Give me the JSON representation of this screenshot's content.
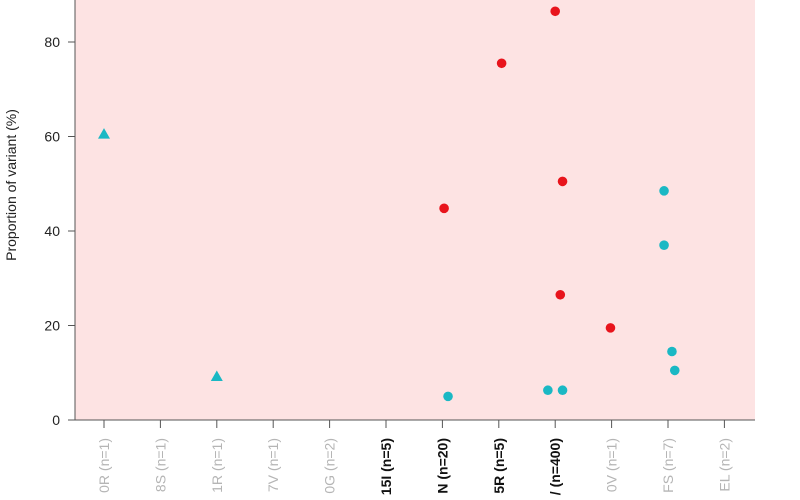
{
  "chart_data": {
    "type": "scatter",
    "ylabel": "Proportion of variant (%)",
    "ylim": [
      0,
      90
    ],
    "yticks": [
      0,
      20,
      40,
      60,
      80
    ],
    "categories": [
      {
        "label": "0R (n=1)",
        "color": "#b5b5b5",
        "bold": false
      },
      {
        "label": "8S (n=1)",
        "color": "#b5b5b5",
        "bold": false
      },
      {
        "label": "1R (n=1)",
        "color": "#b5b5b5",
        "bold": false
      },
      {
        "label": "7V (n=1)",
        "color": "#b5b5b5",
        "bold": false
      },
      {
        "label": "0G (n=2)",
        "color": "#b5b5b5",
        "bold": false
      },
      {
        "label": "15I (n=5)",
        "color": "#111111",
        "bold": true
      },
      {
        "label": "N (n=20)",
        "color": "#111111",
        "bold": true
      },
      {
        "label": "5R (n=5)",
        "color": "#111111",
        "bold": true
      },
      {
        "label": "/ (n=400)",
        "color": "#111111",
        "bold": true
      },
      {
        "label": "0V (n=1)",
        "color": "#b5b5b5",
        "bold": false
      },
      {
        "label": "FS (n=7)",
        "color": "#b5b5b5",
        "bold": false
      },
      {
        "label": "EL (n=2)",
        "color": "#b5b5b5",
        "bold": false
      }
    ],
    "series": [
      {
        "marker": "triangle",
        "color": "#1ab8c4",
        "points": [
          {
            "category": 0,
            "offset": 0,
            "y": 60.5
          },
          {
            "category": 2,
            "offset": 0,
            "y": 9.2
          }
        ]
      },
      {
        "marker": "circle",
        "color": "#1ab8c4",
        "points": [
          {
            "category": 6,
            "offset": 0.1,
            "y": 5
          },
          {
            "category": 8,
            "offset": -0.13,
            "y": 6.3
          },
          {
            "category": 8,
            "offset": 0.13,
            "y": 6.3
          },
          {
            "category": 10,
            "offset": -0.07,
            "y": 48.5
          },
          {
            "category": 10,
            "offset": -0.07,
            "y": 37
          },
          {
            "category": 10,
            "offset": 0.07,
            "y": 14.5
          },
          {
            "category": 10,
            "offset": 0.12,
            "y": 10.5
          }
        ]
      },
      {
        "marker": "circle",
        "color": "#e8141c",
        "points": [
          {
            "category": 6,
            "offset": 0.03,
            "y": 44.8
          },
          {
            "category": 7,
            "offset": 0.05,
            "y": 75.5
          },
          {
            "category": 8,
            "offset": 0,
            "y": 86.5
          },
          {
            "category": 8,
            "offset": 0.13,
            "y": 50.5
          },
          {
            "category": 8,
            "offset": 0.09,
            "y": 26.5
          },
          {
            "category": 9,
            "offset": -0.02,
            "y": 19.5
          }
        ]
      }
    ],
    "background_color": "#fde3e3",
    "grid": false
  }
}
